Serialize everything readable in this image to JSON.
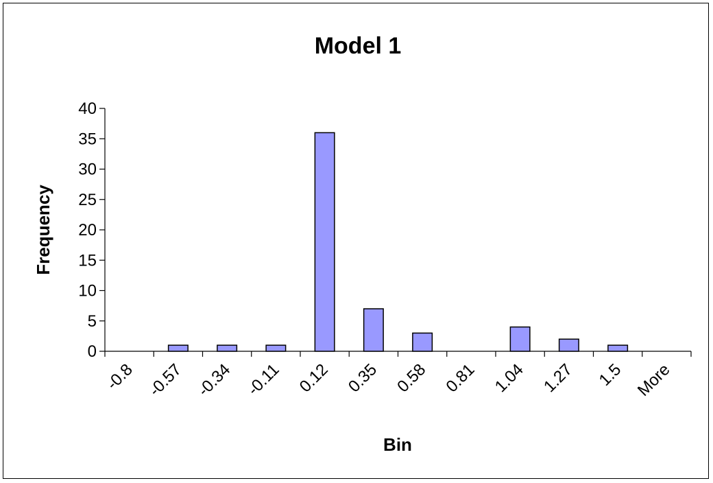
{
  "chart_data": {
    "type": "bar",
    "title": "Model 1",
    "xlabel": "Bin",
    "ylabel": "Frequency",
    "categories": [
      "-0.8",
      "-0.57",
      "-0.34",
      "-0.11",
      "0.12",
      "0.35",
      "0.58",
      "0.81",
      "1.04",
      "1.27",
      "1.5",
      "More"
    ],
    "values": [
      0,
      1,
      1,
      1,
      36,
      7,
      3,
      0,
      4,
      2,
      1,
      0
    ],
    "ylim": [
      0,
      40
    ],
    "yticks": [
      "0",
      "5",
      "10",
      "15",
      "20",
      "25",
      "30",
      "35",
      "40"
    ],
    "grid": false,
    "legend": "none",
    "bar_color": "#9999ff",
    "bar_edge_color": "#000000"
  }
}
